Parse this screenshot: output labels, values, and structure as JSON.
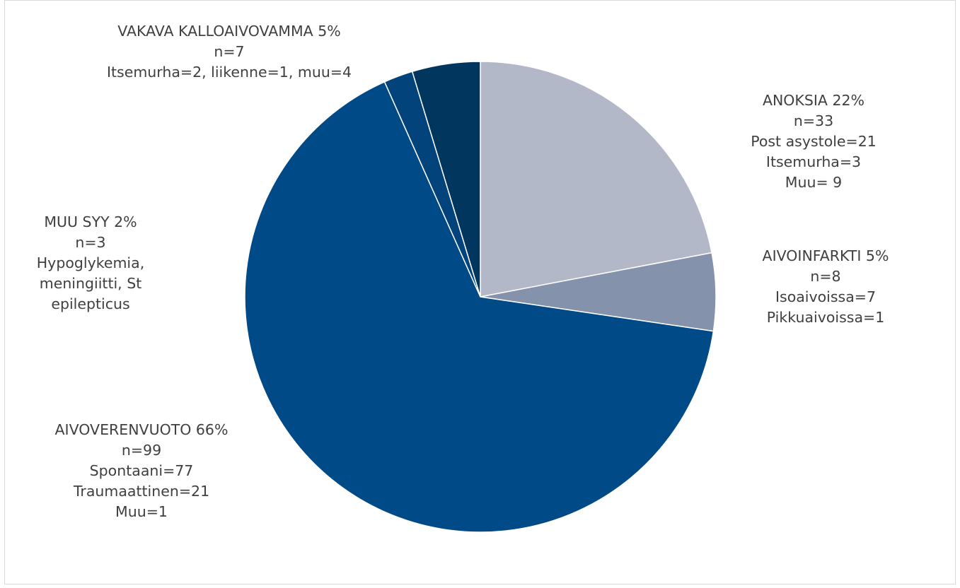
{
  "chart_data": {
    "type": "pie",
    "start": "top",
    "direction": "clockwise",
    "slices": [
      {
        "name": "ANOKSIA",
        "value": 33,
        "percent": 22,
        "color": "#b3b8c9",
        "lines": [
          "ANOKSIA 22%",
          "n=33",
          "Post asystole=21",
          "Itsemurha=3",
          "Muu= 9"
        ]
      },
      {
        "name": "AIVOINFARKTI",
        "value": 8,
        "percent": 5,
        "color": "#8592ab",
        "lines": [
          "AIVOINFARKTI 5%",
          "n=8",
          "Isoaivoissa=7",
          "Pikkuaivoissa=1"
        ]
      },
      {
        "name": "AIVOVERENVUOTO",
        "value": 99,
        "percent": 66,
        "color": "#004a87",
        "lines": [
          "AIVOVERENVUOTO 66%",
          "n=99",
          "Spontaani=77",
          "Traumaattinen=21",
          "Muu=1"
        ]
      },
      {
        "name": "MUU SYY",
        "value": 3,
        "percent": 2,
        "color": "#01437a",
        "lines": [
          "MUU SYY 2%",
          "n=3",
          "Hypoglykemia,",
          "meningiitti, St",
          "epilepticus"
        ]
      },
      {
        "name": "VAKAVA KALLOAIVOVAMMA",
        "value": 7,
        "percent": 5,
        "color": "#01365f",
        "lines": [
          "VAKAVA KALLOAIVOVAMMA 5%",
          "n=7",
          "Itsemurha=2, liikenne=1, muu=4"
        ]
      }
    ]
  }
}
